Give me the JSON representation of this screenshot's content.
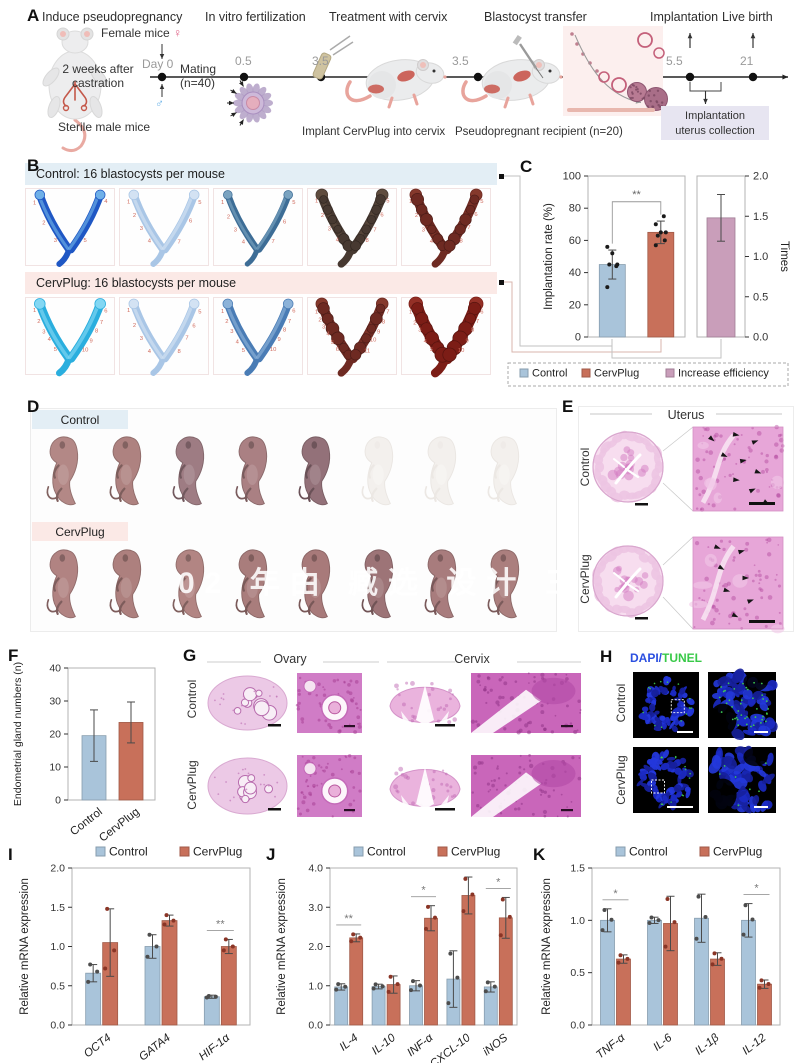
{
  "watermark": "02 年由 臧选 设计 三",
  "colors": {
    "control": "#a9c4da",
    "control_edge": "#87a9c4",
    "cervplug": "#c8705a",
    "cervplug_edge": "#aa523c",
    "efficiency": "#c99eba",
    "efficiency_edge": "#ab7d9c",
    "band_blue": "#e3eef5",
    "band_pink": "#fbe9e6",
    "collection_box": "#e7e5f1",
    "dapi_blue": "#2b4fe0",
    "tunel_green": "#38c948",
    "annotation_red": "#cf6a5c"
  },
  "panelA": {
    "label": "A",
    "step_titles": [
      "Induce pseudopregnancy",
      "In vitro fertilization",
      "Treatment with cervix",
      "Blastocyst transfer",
      "Implantation",
      "Live birth"
    ],
    "female_mice": "Female mice",
    "female_symbol": "♀",
    "male_symbol": "♂",
    "day0": "Day 0",
    "mating": "Mating",
    "mating_n": "(n=40)",
    "castration_1": "2 weeks after",
    "castration_2": "castration",
    "sterile_male": "Sterile male mice",
    "timepoints": [
      "0.5",
      "3.5",
      "3.5",
      "5.5",
      "21"
    ],
    "implant_caption": "Implant CervPlug into cervix",
    "recipient_caption": "Pseudopregnant recipient (n=20)",
    "collection_1": "Implantation",
    "collection_2": "uterus collection"
  },
  "panelB": {
    "label": "B",
    "control_header": "Control: 16 blastocysts per mouse",
    "cervplug_header": "CervPlug: 16 blastocysts per mouse",
    "control_images": [
      {
        "style": "blue",
        "numbers": [
          1,
          2,
          3,
          4,
          5
        ]
      },
      {
        "style": "paleblue",
        "numbers": [
          1,
          2,
          3,
          4,
          5,
          6,
          7
        ]
      },
      {
        "style": "steel",
        "numbers": [
          1,
          2,
          3,
          4,
          5,
          6,
          7
        ]
      },
      {
        "style": "darkbrown",
        "numbers": [
          1,
          2,
          3,
          4,
          5,
          6,
          7,
          8
        ]
      },
      {
        "style": "darkred",
        "numbers": [
          1,
          2,
          3,
          4,
          5,
          6,
          7,
          8
        ]
      }
    ],
    "cervplug_images": [
      {
        "style": "cyan",
        "numbers": [
          1,
          2,
          3,
          4,
          5,
          6,
          7,
          8,
          9,
          10
        ]
      },
      {
        "style": "paleblue",
        "numbers": [
          1,
          2,
          3,
          4,
          5,
          6,
          7,
          8
        ]
      },
      {
        "style": "steel2",
        "numbers": [
          1,
          2,
          3,
          4,
          5,
          6,
          7,
          8,
          9,
          10
        ]
      },
      {
        "style": "darkred",
        "numbers": [
          1,
          2,
          3,
          4,
          5,
          6,
          7,
          8,
          9,
          10,
          11
        ]
      },
      {
        "style": "deepred",
        "numbers": [
          1,
          2,
          3,
          4,
          5,
          6,
          7,
          8,
          9,
          10
        ]
      }
    ]
  },
  "panelC": {
    "label": "C"
  },
  "panelD": {
    "label": "D",
    "control_label": "Control",
    "cervplug_label": "CervPlug",
    "control_pups": [
      "#b38886",
      "#ae8280",
      "#9e7c83",
      "#aa8083",
      "#937179",
      "ghost",
      "ghost",
      "ghost"
    ],
    "cervplug_pups": [
      "#b18382",
      "#ad807e",
      "#b28583",
      "#a97d7c",
      "#a87a7a",
      "#9d7477",
      "#a87c7d",
      "#ab7f7e"
    ]
  },
  "panelE": {
    "label": "E",
    "title": "Uterus",
    "row_labels": [
      "Control",
      "CervPlug"
    ]
  },
  "panelF": {
    "label": "F"
  },
  "panelG": {
    "label": "G",
    "col_headers": [
      "Ovary",
      "Cervix"
    ],
    "row_labels": [
      "Control",
      "CervPlug"
    ]
  },
  "panelH": {
    "label": "H",
    "title_dapi": "DAPI",
    "title_slash": "/",
    "title_tunel": "TUNEL",
    "row_labels": [
      "Control",
      "CervPlug"
    ]
  },
  "panelI": {
    "label": "I"
  },
  "panelJ": {
    "label": "J"
  },
  "panelK": {
    "label": "K"
  },
  "chart_data": [
    {
      "id": "C",
      "type": "bar",
      "left": {
        "ylabel": "Implantation rate (%)",
        "ylim": [
          0,
          100
        ],
        "yticks": [
          0,
          20,
          40,
          60,
          80,
          100
        ],
        "bars": [
          {
            "name": "Control",
            "value": 45,
            "error": 9,
            "color": "control",
            "points": [
              31,
              44,
              45,
              45,
              52,
              56
            ]
          },
          {
            "name": "CervPlug",
            "value": 65,
            "error": 7,
            "color": "cervplug",
            "points": [
              57,
              60,
              63,
              65,
              65,
              70,
              75
            ]
          }
        ],
        "significance": "**"
      },
      "right": {
        "ylabel": "Times",
        "ylim": [
          0,
          2
        ],
        "yticks": [
          "0.0",
          "0.5",
          "1.0",
          "1.5",
          "2.0"
        ],
        "bars": [
          {
            "name": "Increase efficiency",
            "value": 1.48,
            "error": 0.29,
            "color": "efficiency"
          }
        ]
      },
      "legend": [
        {
          "label": "Control",
          "color": "control"
        },
        {
          "label": "CervPlug",
          "color": "cervplug"
        },
        {
          "label": "Increase efficiency",
          "color": "efficiency"
        }
      ]
    },
    {
      "id": "F",
      "type": "bar",
      "ylabel": "Endometrial gland numbers (n)",
      "ylim": [
        0,
        40
      ],
      "yticks": [
        0,
        10,
        20,
        30,
        40
      ],
      "categories": [
        "Control",
        "CervPlug"
      ],
      "values": [
        19.5,
        23.5
      ],
      "errors": [
        7.8,
        6.2
      ],
      "colors": [
        "control",
        "cervplug"
      ]
    },
    {
      "id": "I",
      "type": "grouped_bar",
      "ylabel": "Relative mRNA expression",
      "ylim": [
        0,
        2
      ],
      "yticks": [
        "0.0",
        "0.5",
        "1.0",
        "1.5",
        "2.0"
      ],
      "categories": [
        "OCT4",
        "GATA4",
        "HIF-1α"
      ],
      "legend": [
        "Control",
        "CervPlug"
      ],
      "series": [
        {
          "name": "Control",
          "color": "control",
          "values": [
            0.66,
            1.0,
            0.36
          ],
          "errors": [
            0.11,
            0.15,
            0.02
          ],
          "points": [
            [
              0.55,
              0.68,
              0.77
            ],
            [
              0.87,
              1.0,
              1.15
            ],
            [
              0.35,
              0.36,
              0.37
            ]
          ]
        },
        {
          "name": "CervPlug",
          "color": "cervplug",
          "values": [
            1.05,
            1.33,
            1.0
          ],
          "errors": [
            0.43,
            0.07,
            0.09
          ],
          "points": [
            [
              0.72,
              0.95,
              1.48
            ],
            [
              1.28,
              1.33,
              1.4
            ],
            [
              0.95,
              1.0,
              1.09
            ]
          ]
        }
      ],
      "significance": [
        {
          "category": 2,
          "label": "**"
        }
      ]
    },
    {
      "id": "J",
      "type": "grouped_bar",
      "ylabel": "Relative mRNA expression",
      "ylim": [
        0,
        4
      ],
      "yticks": [
        "0.0",
        "1.0",
        "2.0",
        "3.0",
        "4.0"
      ],
      "categories": [
        "IL-4",
        "IL-10",
        "INF-α",
        "CXCL-10",
        "iNOS"
      ],
      "legend": [
        "Control",
        "CervPlug"
      ],
      "series": [
        {
          "name": "Control",
          "color": "control",
          "values": [
            0.97,
            0.98,
            1.0,
            1.17,
            0.97
          ],
          "errors": [
            0.08,
            0.06,
            0.13,
            0.72,
            0.13
          ]
        },
        {
          "name": "CervPlug",
          "color": "cervplug",
          "values": [
            2.22,
            1.03,
            2.72,
            3.3,
            2.73
          ],
          "errors": [
            0.1,
            0.22,
            0.32,
            0.47,
            0.52
          ]
        }
      ],
      "significance": [
        {
          "category": 0,
          "label": "**"
        },
        {
          "category": 2,
          "label": "*"
        },
        {
          "category": 4,
          "label": "*"
        }
      ]
    },
    {
      "id": "K",
      "type": "grouped_bar",
      "ylabel": "Relative mRNA expression",
      "ylim": [
        0,
        1.5
      ],
      "yticks": [
        "0.0",
        "0.5",
        "1.0",
        "1.5"
      ],
      "categories": [
        "TNF-α",
        "IL-6",
        "IL-1β",
        "IL-12"
      ],
      "legend": [
        "Control",
        "CervPlug"
      ],
      "series": [
        {
          "name": "Control",
          "color": "control",
          "values": [
            1.0,
            1.0,
            1.02,
            1.0
          ],
          "errors": [
            0.11,
            0.03,
            0.23,
            0.16
          ]
        },
        {
          "name": "CervPlug",
          "color": "cervplug",
          "values": [
            0.63,
            0.97,
            0.63,
            0.39
          ],
          "errors": [
            0.04,
            0.26,
            0.06,
            0.04
          ]
        }
      ],
      "significance": [
        {
          "category": 0,
          "label": "*"
        },
        {
          "category": 3,
          "label": "*"
        }
      ]
    }
  ]
}
